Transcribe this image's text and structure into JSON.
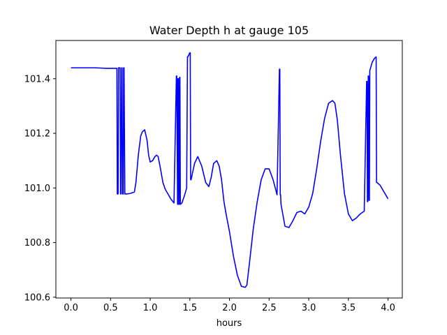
{
  "chart_data": {
    "type": "line",
    "title": "Water Depth h at gauge 105",
    "xlabel": "hours",
    "ylabel": "",
    "xlim": [
      -0.19,
      4.18
    ],
    "ylim": [
      100.597,
      101.54
    ],
    "xticks": [
      0.0,
      0.5,
      1.0,
      1.5,
      2.0,
      2.5,
      3.0,
      3.5,
      4.0
    ],
    "xtick_labels": [
      "0.0",
      "0.5",
      "1.0",
      "1.5",
      "2.0",
      "2.5",
      "3.0",
      "3.5",
      "4.0"
    ],
    "yticks": [
      100.6,
      100.8,
      101.0,
      101.2,
      101.4
    ],
    "ytick_labels": [
      "100.6",
      "100.8",
      "101.0",
      "101.2",
      "101.4"
    ],
    "grid": false,
    "series": [
      {
        "color": "#0000ff",
        "x": [
          0.0,
          0.3,
          0.45,
          0.58,
          0.585,
          0.595,
          0.6,
          0.605,
          0.62,
          0.625,
          0.63,
          0.64,
          0.645,
          0.65,
          0.66,
          0.665,
          0.67,
          0.68,
          0.7,
          0.75,
          0.8,
          0.82,
          0.85,
          0.88,
          0.9,
          0.93,
          0.96,
          0.98,
          1.0,
          1.03,
          1.06,
          1.08,
          1.1,
          1.13,
          1.16,
          1.19,
          1.22,
          1.26,
          1.3,
          1.33,
          1.335,
          1.345,
          1.35,
          1.355,
          1.36,
          1.365,
          1.37,
          1.375,
          1.38,
          1.4,
          1.43,
          1.46,
          1.47,
          1.475,
          1.5,
          1.505,
          1.51,
          1.515,
          1.53,
          1.56,
          1.6,
          1.65,
          1.7,
          1.74,
          1.77,
          1.8,
          1.84,
          1.87,
          1.9,
          1.93,
          1.96,
          2.0,
          2.05,
          2.1,
          2.15,
          2.2,
          2.22,
          2.25,
          2.3,
          2.35,
          2.4,
          2.45,
          2.5,
          2.55,
          2.6,
          2.63,
          2.635,
          2.64,
          2.645,
          2.65,
          2.7,
          2.75,
          2.8,
          2.85,
          2.9,
          2.95,
          3.0,
          3.05,
          3.1,
          3.15,
          3.2,
          3.25,
          3.3,
          3.33,
          3.36,
          3.4,
          3.45,
          3.5,
          3.55,
          3.6,
          3.65,
          3.7,
          3.73,
          3.735,
          3.74,
          3.745,
          3.75,
          3.755,
          3.76,
          3.765,
          3.77,
          3.8,
          3.83,
          3.85,
          3.855,
          3.86,
          3.9,
          3.95,
          4.0
        ],
        "y": [
          101.44,
          101.44,
          101.438,
          101.438,
          100.978,
          100.978,
          101.44,
          101.44,
          101.44,
          100.978,
          100.978,
          101.44,
          101.44,
          100.978,
          100.978,
          101.44,
          101.44,
          100.978,
          100.978,
          100.98,
          100.985,
          101.02,
          101.12,
          101.19,
          101.205,
          101.213,
          101.175,
          101.12,
          101.095,
          101.1,
          101.115,
          101.12,
          101.115,
          101.07,
          101.02,
          100.995,
          100.98,
          100.96,
          100.945,
          101.41,
          101.41,
          100.94,
          101.4,
          101.4,
          100.94,
          100.94,
          101.405,
          101.405,
          100.94,
          100.945,
          100.97,
          101.0,
          101.48,
          101.48,
          101.495,
          101.495,
          101.03,
          101.03,
          101.05,
          101.09,
          101.115,
          101.08,
          101.02,
          101.005,
          101.04,
          101.09,
          101.1,
          101.08,
          101.03,
          100.95,
          100.9,
          100.84,
          100.75,
          100.68,
          100.64,
          100.636,
          100.645,
          100.72,
          100.85,
          100.95,
          101.03,
          101.07,
          101.07,
          101.03,
          100.975,
          101.435,
          101.435,
          100.975,
          100.975,
          100.94,
          100.86,
          100.855,
          100.88,
          100.91,
          100.915,
          100.905,
          100.93,
          100.98,
          101.07,
          101.17,
          101.255,
          101.31,
          101.32,
          101.31,
          101.25,
          101.12,
          100.98,
          100.905,
          100.88,
          100.89,
          100.905,
          100.915,
          101.39,
          101.39,
          100.95,
          100.95,
          101.41,
          101.41,
          100.955,
          100.955,
          101.43,
          101.46,
          101.475,
          101.48,
          101.02,
          101.02,
          101.01,
          100.985,
          100.96
        ]
      }
    ]
  }
}
